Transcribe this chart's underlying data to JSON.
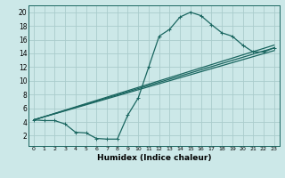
{
  "xlabel": "Humidex (Indice chaleur)",
  "ylabel": "",
  "bg_color": "#cce8e8",
  "grid_color": "#aacccc",
  "line_color": "#1a6660",
  "xlim": [
    -0.5,
    23.5
  ],
  "ylim": [
    0.5,
    21
  ],
  "yticks": [
    2,
    4,
    6,
    8,
    10,
    12,
    14,
    16,
    18,
    20
  ],
  "xticks": [
    0,
    1,
    2,
    3,
    4,
    5,
    6,
    7,
    8,
    9,
    10,
    11,
    12,
    13,
    14,
    15,
    16,
    17,
    18,
    19,
    20,
    21,
    22,
    23
  ],
  "curve_x": [
    0,
    1,
    2,
    3,
    4,
    5,
    6,
    7,
    8,
    9,
    10,
    11,
    12,
    13,
    14,
    15,
    16,
    17,
    18,
    19,
    20,
    21,
    22,
    23
  ],
  "curve_y": [
    4.3,
    4.2,
    4.2,
    3.7,
    2.5,
    2.4,
    1.6,
    1.5,
    1.5,
    5.0,
    7.5,
    12.0,
    16.5,
    17.5,
    19.3,
    20.0,
    19.5,
    18.2,
    17.0,
    16.5,
    15.2,
    14.2,
    14.2,
    14.8
  ],
  "line2_x": [
    0,
    23
  ],
  "line2_y": [
    4.3,
    15.2
  ],
  "line3_x": [
    0,
    23
  ],
  "line3_y": [
    4.3,
    14.8
  ],
  "line4_x": [
    0,
    23
  ],
  "line4_y": [
    4.3,
    14.4
  ]
}
